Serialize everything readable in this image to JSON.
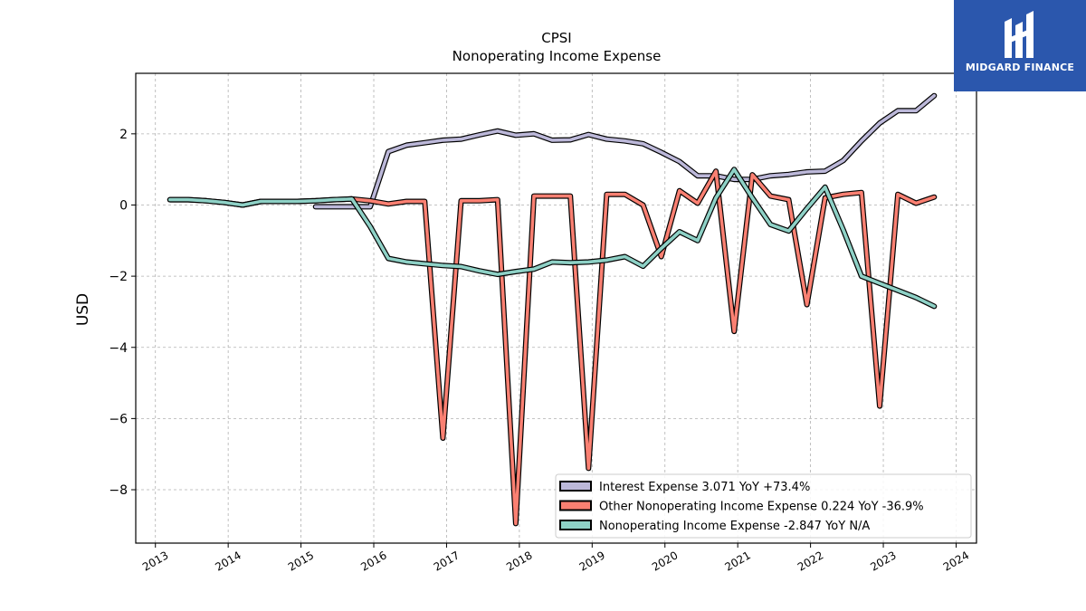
{
  "chart_data": {
    "type": "line",
    "title": "CPSI",
    "subtitle": "Nonoperating Income Expense",
    "xlabel": "",
    "ylabel": "USD",
    "xlim": [
      2012.73,
      2024.28
    ],
    "ylim": [
      -9.5,
      3.7
    ],
    "grid": true,
    "legend_position": "lower-right",
    "x_ticks": [
      "2013",
      "2014",
      "2015",
      "2016",
      "2017",
      "2018",
      "2019",
      "2020",
      "2021",
      "2022",
      "2023",
      "2024"
    ],
    "y_ticks": [
      2,
      0,
      -2,
      -4,
      -6,
      -8
    ],
    "y_tick_labels": [
      "2",
      "0",
      "−2",
      "−4",
      "−6",
      "−8"
    ],
    "series": [
      {
        "name": "Interest Expense",
        "legend": "Interest Expense  3.071 YoY +73.4%",
        "color": "#bcb8d9",
        "x": [
          2015.2,
          2015.45,
          2015.7,
          2015.95,
          2016.2,
          2016.45,
          2016.7,
          2016.95,
          2017.2,
          2017.45,
          2017.7,
          2017.95,
          2018.2,
          2018.45,
          2018.7,
          2018.95,
          2019.2,
          2019.45,
          2019.7,
          2019.95,
          2020.2,
          2020.45,
          2020.7,
          2020.95,
          2021.2,
          2021.45,
          2021.7,
          2021.95,
          2022.2,
          2022.45,
          2022.7,
          2022.95,
          2023.2,
          2023.45,
          2023.7
        ],
        "y": [
          -0.05,
          -0.05,
          -0.05,
          -0.05,
          1.5,
          1.68,
          1.75,
          1.82,
          1.85,
          1.97,
          2.08,
          1.96,
          2.0,
          1.82,
          1.83,
          1.98,
          1.85,
          1.8,
          1.72,
          1.48,
          1.22,
          0.82,
          0.82,
          0.72,
          0.72,
          0.82,
          0.86,
          0.93,
          0.95,
          1.25,
          1.8,
          2.3,
          2.65,
          2.65,
          3.071
        ]
      },
      {
        "name": "Other Nonoperating Income Expense",
        "legend": "Other Nonoperating Income Expense  0.224 YoY -36.9%",
        "color": "#fa8072",
        "x": [
          2013.2,
          2013.45,
          2013.7,
          2013.95,
          2014.2,
          2014.45,
          2014.7,
          2014.95,
          2015.2,
          2015.45,
          2015.7,
          2015.95,
          2016.2,
          2016.45,
          2016.7,
          2016.95,
          2017.2,
          2017.45,
          2017.7,
          2017.95,
          2018.2,
          2018.45,
          2018.7,
          2018.95,
          2019.2,
          2019.45,
          2019.7,
          2019.95,
          2020.2,
          2020.45,
          2020.7,
          2020.95,
          2021.2,
          2021.45,
          2021.7,
          2021.95,
          2022.2,
          2022.45,
          2022.7,
          2022.95,
          2023.2,
          2023.45,
          2023.7
        ],
        "y": [
          0.15,
          0.15,
          0.12,
          0.07,
          0.0,
          0.1,
          0.1,
          0.1,
          0.12,
          0.15,
          0.17,
          0.12,
          0.03,
          0.1,
          0.1,
          -6.55,
          0.12,
          0.12,
          0.15,
          -8.95,
          0.25,
          0.25,
          0.25,
          -7.4,
          0.3,
          0.3,
          0.0,
          -1.45,
          0.4,
          0.05,
          0.95,
          -3.55,
          0.85,
          0.25,
          0.15,
          -2.8,
          0.2,
          0.3,
          0.35,
          -5.65,
          0.3,
          0.05,
          0.224
        ]
      },
      {
        "name": "Nonoperating Income Expense",
        "legend": "Nonoperating Income Expense  -2.847 YoY N/A",
        "color": "#8ed1c6",
        "x": [
          2013.2,
          2013.45,
          2013.7,
          2013.95,
          2014.2,
          2014.45,
          2014.7,
          2014.95,
          2015.2,
          2015.45,
          2015.7,
          2015.95,
          2016.2,
          2016.45,
          2016.7,
          2016.95,
          2017.2,
          2017.45,
          2017.7,
          2017.95,
          2018.2,
          2018.45,
          2018.7,
          2018.95,
          2019.2,
          2019.45,
          2019.7,
          2019.95,
          2020.2,
          2020.45,
          2020.7,
          2020.95,
          2021.2,
          2021.45,
          2021.7,
          2021.95,
          2022.2,
          2022.45,
          2022.7,
          2022.95,
          2023.2,
          2023.45,
          2023.7
        ],
        "y": [
          0.15,
          0.15,
          0.12,
          0.07,
          0.0,
          0.1,
          0.1,
          0.1,
          0.12,
          0.15,
          0.17,
          -0.6,
          -1.5,
          -1.6,
          -1.65,
          -1.7,
          -1.73,
          -1.85,
          -1.95,
          -1.87,
          -1.8,
          -1.6,
          -1.62,
          -1.6,
          -1.55,
          -1.45,
          -1.72,
          -1.22,
          -0.75,
          -1.0,
          0.2,
          1.0,
          0.2,
          -0.55,
          -0.73,
          -0.1,
          0.5,
          -0.7,
          -2.0,
          -2.2,
          -2.4,
          -2.6,
          -2.847
        ]
      }
    ]
  },
  "logo": {
    "text": "MIDGARD FINANCE",
    "background": "#2b57ad"
  }
}
